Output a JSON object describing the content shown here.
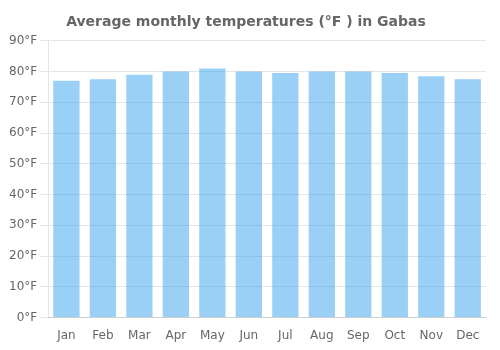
{
  "chart_data": {
    "type": "bar",
    "title": "Average monthly temperatures (°F ) in Gabas",
    "categories": [
      "Jan",
      "Feb",
      "Mar",
      "Apr",
      "May",
      "Jun",
      "Jul",
      "Aug",
      "Sep",
      "Oct",
      "Nov",
      "Dec"
    ],
    "values": [
      77,
      77.5,
      79,
      80,
      81,
      80,
      79.5,
      80,
      80,
      79.5,
      78.5,
      77.5
    ],
    "ylim": [
      0,
      90
    ],
    "yticks": [
      {
        "value": 0,
        "label": "0°F"
      },
      {
        "value": 10,
        "label": "10°F"
      },
      {
        "value": 20,
        "label": "20°F"
      },
      {
        "value": 30,
        "label": "30°F"
      },
      {
        "value": 40,
        "label": "40°F"
      },
      {
        "value": 50,
        "label": "50°F"
      },
      {
        "value": 60,
        "label": "60°F"
      },
      {
        "value": 70,
        "label": "70°F"
      },
      {
        "value": 80,
        "label": "80°F"
      },
      {
        "value": 90,
        "label": "90°F"
      }
    ],
    "grid": true
  }
}
